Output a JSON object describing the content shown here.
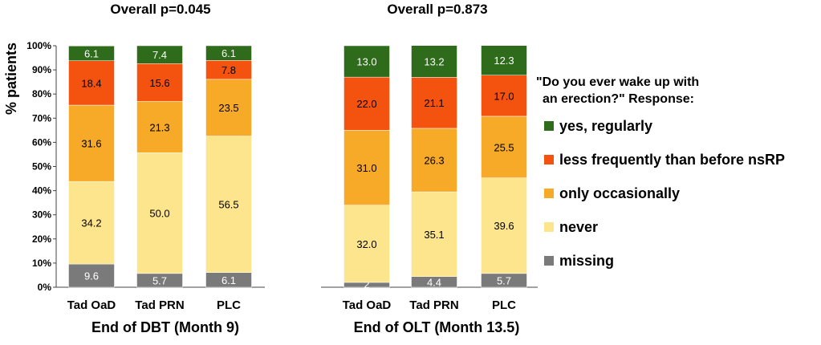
{
  "chart_data": {
    "type": "bar",
    "stacked": true,
    "percent_stacked": true,
    "ylabel": "% patients",
    "ylim": [
      0,
      100
    ],
    "yticks": [
      "0%",
      "10%",
      "20%",
      "30%",
      "40%",
      "50%",
      "60%",
      "70%",
      "80%",
      "90%",
      "100%"
    ],
    "grid": false,
    "legend": {
      "title": "\"Do you ever wake up with an erection?\" Response:",
      "title_lines": [
        "\"Do you ever wake up with",
        "an erection?\" Response:"
      ],
      "placement": "right"
    },
    "colors": {
      "yes, regularly": "#2e6b1a",
      "less frequently than before nsRP": "#f4520f",
      "only occasionally": "#f7a928",
      "never": "#fce58c",
      "missing": "#7a7a7a"
    },
    "series_order_bottom_to_top": [
      "missing",
      "never",
      "only occasionally",
      "less frequently than before nsRP",
      "yes, regularly"
    ],
    "legend_order": [
      "yes, regularly",
      "less frequently than before nsRP",
      "only occasionally",
      "never",
      "missing"
    ],
    "panels": [
      {
        "title": "Overall p=0.045",
        "xlabel": "End of DBT (Month 9)",
        "categories": [
          "Tad OaD",
          "Tad PRN",
          "PLC"
        ],
        "series": [
          {
            "name": "missing",
            "values": [
              9.6,
              5.7,
              6.1
            ],
            "labels": [
              "9.6",
              "5.7",
              "6.1"
            ]
          },
          {
            "name": "never",
            "values": [
              34.2,
              50.0,
              56.5
            ],
            "labels": [
              "34.2",
              "50.0",
              "56.5"
            ]
          },
          {
            "name": "only occasionally",
            "values": [
              31.6,
              21.3,
              23.5
            ],
            "labels": [
              "31.6",
              "21.3",
              "23.5"
            ]
          },
          {
            "name": "less frequently than before nsRP",
            "values": [
              18.4,
              15.6,
              7.8
            ],
            "labels": [
              "18.4",
              "15.6",
              "7.8"
            ]
          },
          {
            "name": "yes, regularly",
            "values": [
              6.1,
              7.4,
              6.1
            ],
            "labels": [
              "6.1",
              "7.4",
              "6.1"
            ]
          }
        ]
      },
      {
        "title": "Overall p=0.873",
        "xlabel": "End of OLT (Month 13.5)",
        "categories": [
          "Tad OaD",
          "Tad PRN",
          "PLC"
        ],
        "series": [
          {
            "name": "missing",
            "values": [
              2,
              4.4,
              5.7
            ],
            "labels": [
              "2",
              "4.4",
              "5.7"
            ]
          },
          {
            "name": "never",
            "values": [
              32.0,
              35.1,
              39.6
            ],
            "labels": [
              "32.0",
              "35.1",
              "39.6"
            ]
          },
          {
            "name": "only occasionally",
            "values": [
              31.0,
              26.3,
              25.5
            ],
            "labels": [
              "31.0",
              "26.3",
              "25.5"
            ]
          },
          {
            "name": "less frequently than before nsRP",
            "values": [
              22.0,
              21.1,
              17.0
            ],
            "labels": [
              "22.0",
              "21.1",
              "17.0"
            ]
          },
          {
            "name": "yes, regularly",
            "values": [
              13.0,
              13.2,
              12.3
            ],
            "labels": [
              "13.0",
              "13.2",
              "12.3"
            ]
          }
        ]
      }
    ]
  }
}
